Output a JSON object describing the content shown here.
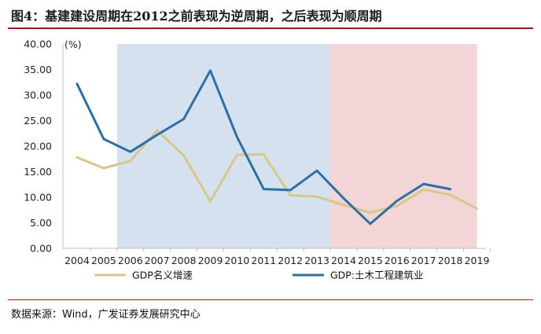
{
  "header": {
    "title": "图4：基建建设周期在2012之前表现为逆周期，之后表现为顺周期"
  },
  "footer": {
    "source": "数据来源：Wind，广发证券发展研究中心"
  },
  "colors": {
    "gdp": "#d6c88a",
    "civil": "#2e6fa3",
    "counter_band": "#d6e1ef",
    "pro_band": "#f3d5d5",
    "axis": "#bfbfbf"
  },
  "chart_data": {
    "type": "line",
    "title": "",
    "xlabel": "",
    "ylabel": "",
    "unit_label": "(%)",
    "categories": [
      "2004",
      "2005",
      "2006",
      "2007",
      "2008",
      "2009",
      "2010",
      "2011",
      "2012",
      "2013",
      "2014",
      "2015",
      "2016",
      "2017",
      "2018",
      "2019"
    ],
    "ylim": [
      0,
      40
    ],
    "yticks": [
      "0.00",
      "5.00",
      "10.00",
      "15.00",
      "20.00",
      "25.00",
      "30.00",
      "35.00",
      "40.00"
    ],
    "grid": false,
    "legend": "bottom",
    "bands": [
      {
        "from": "2005",
        "to": "2013",
        "kind": "counter_band"
      },
      {
        "from": "2013",
        "to": "2018.5",
        "kind": "pro_band"
      }
    ],
    "series": [
      {
        "name": "GDP名义增速",
        "color_key": "gdp",
        "values": [
          17.8,
          15.7,
          17.1,
          23.1,
          18.2,
          9.2,
          18.3,
          18.4,
          10.4,
          10.1,
          8.5,
          7.0,
          8.3,
          11.5,
          10.5,
          7.8
        ]
      },
      {
        "name": "GDP:土木工程建筑业",
        "color_key": "civil",
        "values": [
          32.2,
          21.4,
          18.9,
          22.2,
          25.3,
          34.8,
          21.8,
          11.6,
          11.4,
          15.2,
          9.8,
          4.8,
          9.3,
          12.6,
          11.6,
          null
        ]
      }
    ]
  }
}
